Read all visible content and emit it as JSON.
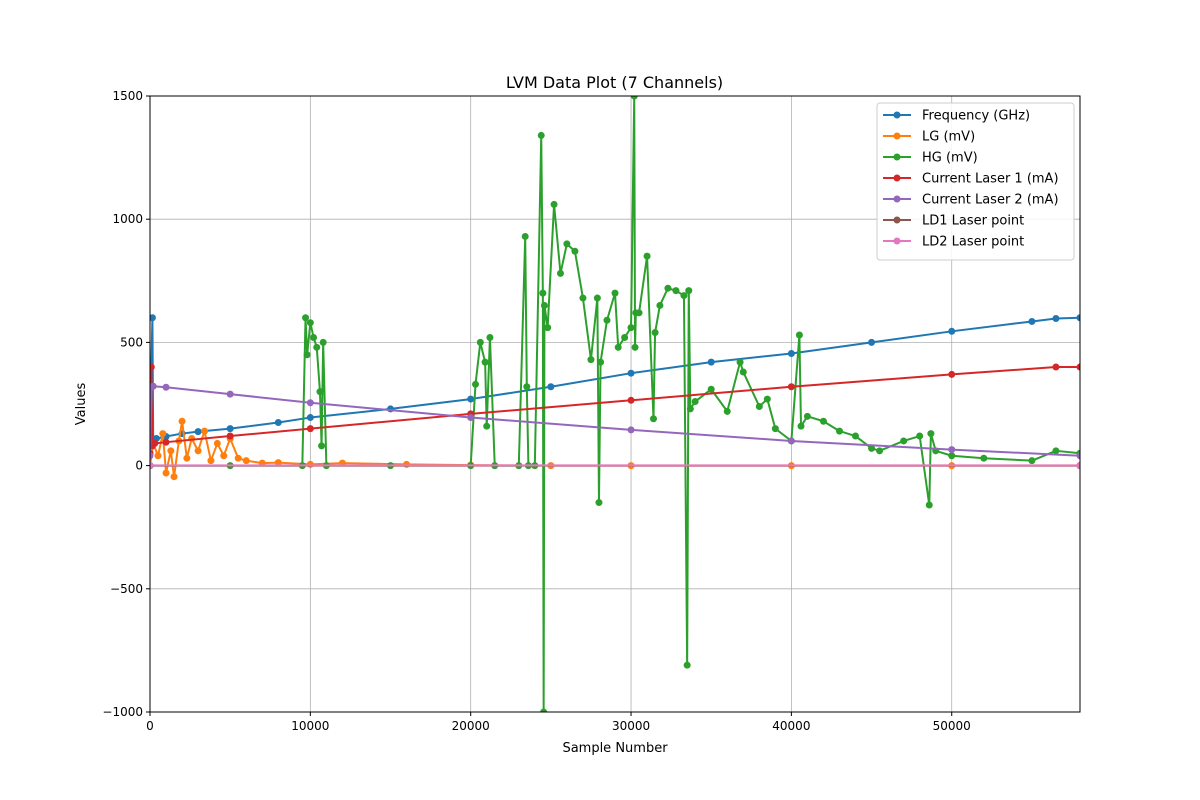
{
  "chart_data": {
    "type": "line",
    "title": "LVM Data Plot (7 Channels)",
    "xlabel": "Sample Number",
    "ylabel": "Values",
    "xlim": [
      0,
      58000
    ],
    "ylim": [
      -1000,
      1500
    ],
    "xticks": [
      0,
      10000,
      20000,
      30000,
      40000,
      50000
    ],
    "xtick_labels": [
      "0",
      "10000",
      "20000",
      "30000",
      "40000",
      "50000"
    ],
    "yticks": [
      -1000,
      -500,
      0,
      500,
      1000,
      1500
    ],
    "ytick_labels": [
      "−1000",
      "−500",
      "0",
      "500",
      "1000",
      "1500"
    ],
    "grid": true,
    "legend_position": "top-right",
    "marker": "circle",
    "series": [
      {
        "name": "Frequency (GHz)",
        "color": "#1f77b4",
        "x": [
          0,
          150,
          200,
          400,
          1000,
          2000,
          3000,
          5000,
          8000,
          10000,
          15000,
          20000,
          25000,
          30000,
          35000,
          40000,
          45000,
          50000,
          55000,
          56500,
          58000
        ],
        "y": [
          150,
          600,
          100,
          110,
          118,
          130,
          138,
          150,
          175,
          195,
          230,
          270,
          320,
          375,
          420,
          455,
          500,
          545,
          585,
          597,
          600
        ]
      },
      {
        "name": "LG (mV)",
        "color": "#ff7f0e",
        "x": [
          0,
          200,
          500,
          800,
          1000,
          1300,
          1500,
          1800,
          2000,
          2300,
          2600,
          3000,
          3400,
          3800,
          4200,
          4600,
          5000,
          5500,
          6000,
          7000,
          8000,
          10000,
          12000,
          16000,
          20000,
          25000,
          30000,
          40000,
          50000,
          58000
        ],
        "y": [
          0,
          90,
          40,
          130,
          -30,
          60,
          -45,
          100,
          180,
          30,
          110,
          60,
          140,
          20,
          90,
          40,
          110,
          30,
          20,
          10,
          12,
          5,
          10,
          5,
          2,
          0,
          0,
          0,
          0,
          0
        ]
      },
      {
        "name": "HG (mV)",
        "color": "#2ca02c",
        "x": [
          0,
          5000,
          9500,
          9700,
          9800,
          10000,
          10200,
          10400,
          10600,
          10700,
          10800,
          11000,
          15000,
          20000,
          20300,
          20600,
          20900,
          21000,
          21200,
          21500,
          23000,
          23400,
          23500,
          23600,
          24000,
          24400,
          24500,
          24550,
          24600,
          24800,
          25200,
          25600,
          26000,
          26500,
          27000,
          27500,
          27900,
          28000,
          28100,
          28500,
          29000,
          29200,
          29600,
          30000,
          30200,
          30250,
          30300,
          30500,
          31000,
          31400,
          31500,
          31800,
          32300,
          32800,
          33300,
          33500,
          33600,
          33700,
          34000,
          35000,
          36000,
          36800,
          37000,
          38000,
          38500,
          39000,
          40000,
          40500,
          40600,
          41000,
          42000,
          43000,
          44000,
          45000,
          45500,
          47000,
          48000,
          48600,
          48700,
          49000,
          50000,
          52000,
          55000,
          56500,
          58000
        ],
        "y": [
          0,
          0,
          0,
          600,
          450,
          580,
          520,
          480,
          300,
          80,
          500,
          0,
          0,
          0,
          330,
          500,
          420,
          160,
          520,
          0,
          0,
          930,
          320,
          0,
          0,
          1340,
          700,
          -1000,
          650,
          560,
          1060,
          780,
          900,
          870,
          680,
          430,
          680,
          -150,
          420,
          590,
          700,
          480,
          520,
          560,
          1500,
          480,
          620,
          620,
          850,
          190,
          540,
          650,
          720,
          710,
          690,
          -810,
          710,
          230,
          260,
          310,
          220,
          420,
          380,
          240,
          270,
          150,
          100,
          530,
          160,
          200,
          180,
          140,
          120,
          70,
          60,
          100,
          120,
          -160,
          130,
          60,
          40,
          30,
          20,
          60,
          50
        ]
      },
      {
        "name": "Current Laser 1 (mA)",
        "color": "#d62728",
        "x": [
          0,
          80,
          150,
          300,
          1000,
          5000,
          10000,
          20000,
          30000,
          40000,
          50000,
          56500,
          58000
        ],
        "y": [
          50,
          400,
          80,
          90,
          95,
          120,
          150,
          210,
          265,
          320,
          370,
          400,
          400
        ]
      },
      {
        "name": "Current Laser 2 (mA)",
        "color": "#9467bd",
        "x": [
          0,
          100,
          200,
          1000,
          5000,
          10000,
          20000,
          30000,
          40000,
          50000,
          58000
        ],
        "y": [
          40,
          320,
          322,
          318,
          290,
          255,
          195,
          145,
          100,
          65,
          40
        ]
      },
      {
        "name": "LD1 Laser point",
        "color": "#8c564b",
        "x": [
          0,
          58000
        ],
        "y": [
          0,
          0
        ]
      },
      {
        "name": "LD2 Laser point",
        "color": "#e377c2",
        "x": [
          0,
          58000
        ],
        "y": [
          1,
          1
        ]
      }
    ]
  }
}
